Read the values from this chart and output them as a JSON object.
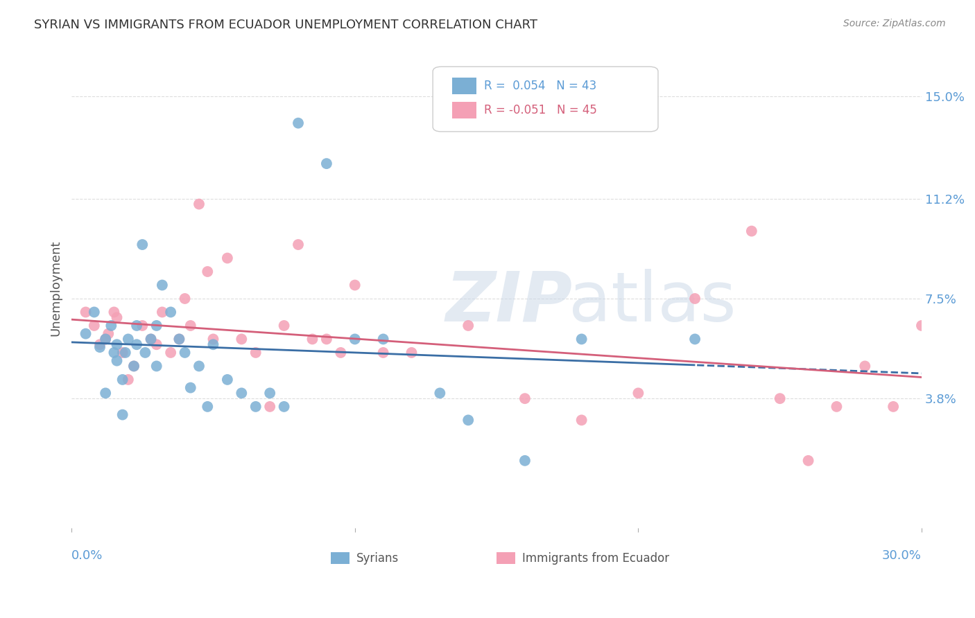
{
  "title": "SYRIAN VS IMMIGRANTS FROM ECUADOR UNEMPLOYMENT CORRELATION CHART",
  "source": "Source: ZipAtlas.com",
  "ylabel": "Unemployment",
  "ytick_labels": [
    "15.0%",
    "11.2%",
    "7.5%",
    "3.8%"
  ],
  "ytick_values": [
    0.15,
    0.112,
    0.075,
    0.038
  ],
  "xlim": [
    0.0,
    0.3
  ],
  "ylim": [
    -0.01,
    0.168
  ],
  "blue_color": "#7bafd4",
  "pink_color": "#f4a0b5",
  "trend_blue": "#3a6ea5",
  "trend_pink": "#d45f7a",
  "syrians_x": [
    0.005,
    0.008,
    0.01,
    0.012,
    0.012,
    0.014,
    0.015,
    0.016,
    0.016,
    0.018,
    0.018,
    0.019,
    0.02,
    0.022,
    0.023,
    0.023,
    0.025,
    0.026,
    0.028,
    0.03,
    0.03,
    0.032,
    0.035,
    0.038,
    0.04,
    0.042,
    0.045,
    0.048,
    0.05,
    0.055,
    0.06,
    0.065,
    0.07,
    0.075,
    0.08,
    0.09,
    0.1,
    0.11,
    0.13,
    0.14,
    0.16,
    0.18,
    0.22
  ],
  "syrians_y": [
    0.062,
    0.07,
    0.057,
    0.06,
    0.04,
    0.065,
    0.055,
    0.058,
    0.052,
    0.045,
    0.032,
    0.055,
    0.06,
    0.05,
    0.058,
    0.065,
    0.095,
    0.055,
    0.06,
    0.05,
    0.065,
    0.08,
    0.07,
    0.06,
    0.055,
    0.042,
    0.05,
    0.035,
    0.058,
    0.045,
    0.04,
    0.035,
    0.04,
    0.035,
    0.14,
    0.125,
    0.06,
    0.06,
    0.04,
    0.03,
    0.015,
    0.06,
    0.06
  ],
  "ecuador_x": [
    0.005,
    0.008,
    0.01,
    0.012,
    0.013,
    0.015,
    0.016,
    0.018,
    0.02,
    0.022,
    0.025,
    0.028,
    0.03,
    0.032,
    0.035,
    0.038,
    0.04,
    0.042,
    0.045,
    0.048,
    0.05,
    0.055,
    0.06,
    0.065,
    0.07,
    0.075,
    0.08,
    0.085,
    0.09,
    0.095,
    0.1,
    0.11,
    0.12,
    0.14,
    0.16,
    0.18,
    0.2,
    0.22,
    0.24,
    0.25,
    0.26,
    0.27,
    0.28,
    0.29,
    0.3
  ],
  "ecuador_y": [
    0.07,
    0.065,
    0.058,
    0.06,
    0.062,
    0.07,
    0.068,
    0.055,
    0.045,
    0.05,
    0.065,
    0.06,
    0.058,
    0.07,
    0.055,
    0.06,
    0.075,
    0.065,
    0.11,
    0.085,
    0.06,
    0.09,
    0.06,
    0.055,
    0.035,
    0.065,
    0.095,
    0.06,
    0.06,
    0.055,
    0.08,
    0.055,
    0.055,
    0.065,
    0.038,
    0.03,
    0.04,
    0.075,
    0.1,
    0.038,
    0.015,
    0.035,
    0.05,
    0.035,
    0.065
  ],
  "background_color": "#ffffff",
  "grid_color": "#dddddd"
}
